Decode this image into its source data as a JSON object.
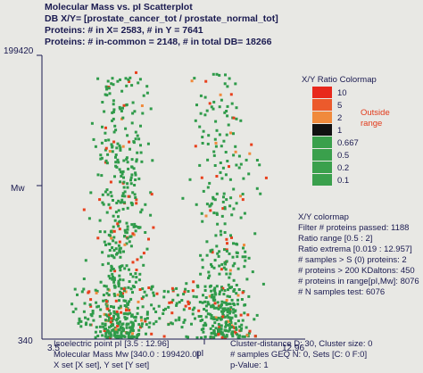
{
  "header": {
    "title": "Molecular Mass vs. pI Scatterplot",
    "line2": "DB X/Y= [prostate_cancer_tot / prostate_normal_tot]",
    "line3": "Proteins: # in X= 2583, # in Y = 7641",
    "line4": "Proteins: # in-common = 2148, # in total DB= 18266"
  },
  "colors": {
    "background": "#e8e8e4",
    "green": "#2f9b4a",
    "red": "#e8401c",
    "orange": "#f08a3c",
    "black": "#111111",
    "text": "#1a1a50"
  },
  "legend": {
    "title": "X/Y Ratio Colormap",
    "outside_label_1": "Outside",
    "outside_label_2": "range",
    "entries": [
      {
        "label": "10",
        "color": "#e8281c"
      },
      {
        "label": "5",
        "color": "#ec5a2c"
      },
      {
        "label": "2",
        "color": "#f08a3c"
      },
      {
        "label": "1",
        "color": "#111111"
      },
      {
        "label": "0.667",
        "color": "#3aa04c"
      },
      {
        "label": "0.5",
        "color": "#3aa04c"
      },
      {
        "label": "0.2",
        "color": "#3aa04c"
      },
      {
        "label": "0.1",
        "color": "#3aa04c"
      }
    ]
  },
  "stats": {
    "title": "X/Y colormap",
    "lines": [
      "Filter # proteins passed: 1188",
      "Ratio range [0.5 : 2]",
      "Ratio extrema [0.019 : 12.957]",
      "# samples > S (0) proteins: 2",
      "# proteins > 200 KDaltons: 450",
      "# proteins in range[pI,Mw]: 8076",
      "# N samples test: 6076"
    ]
  },
  "footer": {
    "left1": "Isoelectric point pI [3.5 : 12.96]",
    "left2": "Molecular Mass Mw [340.0 : 199420.0]",
    "left3": "X set [X set], Y set [Y set]",
    "right1": "Cluster-distance D: 30, Cluster size: 0",
    "right2": "# samples GEQ N: 0, Sets [C: 0 F:0]",
    "right3": "p-Value: 1"
  },
  "chart_data": {
    "type": "scatter",
    "xlabel": "pI",
    "ylabel": "Mw",
    "xlim": [
      3.5,
      12.96
    ],
    "ylim": [
      340,
      199420
    ],
    "x_tick_labels": [
      "3.5",
      "12.96"
    ],
    "y_tick_labels": [
      "340",
      "199420"
    ],
    "grid": false,
    "legend_position": "right",
    "series": [
      {
        "name": "",
        "color": "#2f9b4a",
        "approx_point_count": 1000
      },
      {
        "name": "",
        "color": "#e8401c",
        "approx_point_count": 150
      }
    ]
  }
}
